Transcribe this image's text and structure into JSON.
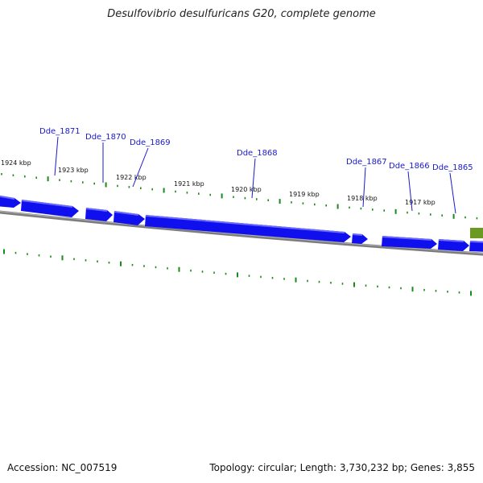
{
  "title": "Desulfovibrio desulfuricans G20, complete genome",
  "footer": {
    "accession": "Accession: NC_007519",
    "summary": "Topology: circular; Length: 3,730,232 bp; Genes: 3,855"
  },
  "colors": {
    "gene_fill": "#1010ee",
    "gene_highlight": "#5a5aff",
    "other_feature": "#6a9a22",
    "backbone": "#8c8c8c",
    "tick": "#1a8a1a",
    "locus_label": "#1a1acc"
  },
  "ruler_kbp": [
    1924,
    1923,
    1922,
    1921,
    1920,
    1919,
    1918,
    1917
  ],
  "ruler_labels": [
    "1924 kbp",
    "1923 kbp",
    "1922 kbp",
    "1921 kbp",
    "1920 kbp",
    "1919 kbp",
    "1918 kbp",
    "1917 kbp"
  ],
  "loci": [
    "Dde_1871",
    "Dde_1870",
    "Dde_1869",
    "Dde_1868",
    "Dde_1867",
    "Dde_1866",
    "Dde_1865"
  ]
}
